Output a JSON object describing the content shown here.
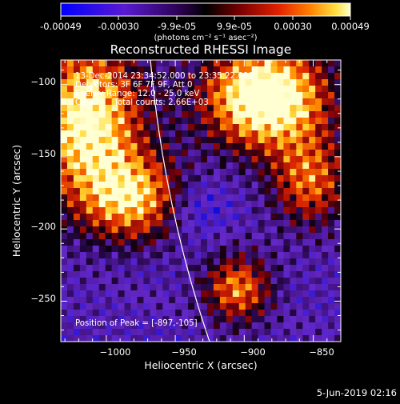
{
  "colorbar": {
    "tick_labels": [
      "-0.00049",
      "-0.00030",
      "-9.9e-05",
      "9.9e-05",
      "0.00030",
      "0.00049"
    ],
    "unit_label": "(photons cm⁻² s⁻¹ asec⁻²)"
  },
  "image": {
    "title": "Reconstructed RHESSI Image",
    "annotations": {
      "time_range": "13-Dec-2014 23:34:52.000 to 23:35:22.000",
      "detectors": "Detectors: 3F 6F 7F 9F, Att 0",
      "energy_range": "Energy Range: 12.0 - 25.0 keV",
      "clean_counts": "Clean      Total counts: 2.66E+03"
    },
    "peak_label": "Position of Peak = [-897,-105]"
  },
  "axes": {
    "x_label": "Heliocentric X (arcsec)",
    "y_label": "Heliocentric Y (arcsec)",
    "x_ticks": [
      {
        "value": -1000,
        "label": "−1000"
      },
      {
        "value": -950,
        "label": "−950"
      },
      {
        "value": -900,
        "label": "−900"
      },
      {
        "value": -850,
        "label": "−850"
      }
    ],
    "y_ticks": [
      {
        "value": -100,
        "label": "−100"
      },
      {
        "value": -150,
        "label": "−150"
      },
      {
        "value": -200,
        "label": "−200"
      },
      {
        "value": -250,
        "label": "−250"
      }
    ],
    "x_range": [
      -1033,
      -830
    ],
    "y_range": [
      -278,
      -83
    ]
  },
  "footer": {
    "date_label": "5-Jun-2019 02:16"
  }
}
